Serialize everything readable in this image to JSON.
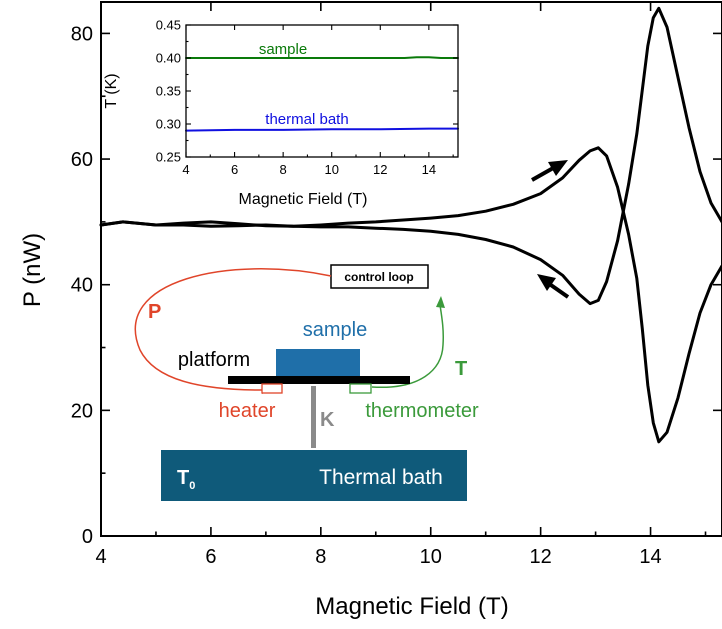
{
  "chart_data": [
    {
      "type": "line",
      "xlabel": "Magnetic Field (T)",
      "ylabel": "P (nW)",
      "xlim": [
        4,
        15.3
      ],
      "ylim": [
        0,
        85
      ],
      "x_ticks": [
        4,
        6,
        8,
        10,
        12,
        14
      ],
      "y_ticks": [
        0,
        20,
        40,
        60,
        80
      ],
      "grid": false,
      "series": [
        {
          "x": [
            4.0,
            4.4,
            5.0,
            5.5,
            6.0,
            6.5,
            7.0,
            7.5,
            8.0,
            8.5,
            9.0,
            9.5,
            10.0,
            10.5,
            11.0,
            11.5,
            12.0,
            12.4,
            12.7,
            12.9,
            13.05,
            13.2,
            13.4,
            13.6,
            13.75,
            13.85,
            13.95,
            14.05,
            14.15,
            14.3,
            14.5,
            14.7,
            14.9,
            15.1,
            15.3
          ],
          "values": [
            49.5,
            50.0,
            49.5,
            49.8,
            50.0,
            49.7,
            49.4,
            49.3,
            49.5,
            49.8,
            50.0,
            50.3,
            50.6,
            51.0,
            51.7,
            52.8,
            54.5,
            57.0,
            59.8,
            61.3,
            61.8,
            60.5,
            55.5,
            48.0,
            41.0,
            33.0,
            24.0,
            18.0,
            15.0,
            16.5,
            22.0,
            29.0,
            35.5,
            40.0,
            43.0
          ]
        },
        {
          "x": [
            4.0,
            4.4,
            5.0,
            5.5,
            6.0,
            6.5,
            7.0,
            7.5,
            8.0,
            8.5,
            9.0,
            9.5,
            10.0,
            10.5,
            11.0,
            11.5,
            12.0,
            12.4,
            12.7,
            12.9,
            13.05,
            13.2,
            13.4,
            13.6,
            13.75,
            13.85,
            13.95,
            14.05,
            14.15,
            14.3,
            14.5,
            14.7,
            14.9,
            15.1,
            15.3
          ],
          "values": [
            49.5,
            50.0,
            49.5,
            49.5,
            49.3,
            49.4,
            49.5,
            49.3,
            49.2,
            49.2,
            49.0,
            48.8,
            48.5,
            48.0,
            47.2,
            46.0,
            44.0,
            41.5,
            38.5,
            37.0,
            37.5,
            40.5,
            47.0,
            56.0,
            64.0,
            71.0,
            78.0,
            82.5,
            84.0,
            81.0,
            73.0,
            65.0,
            58.0,
            53.0,
            50.0
          ]
        }
      ],
      "annotations": {
        "controlloop": "control loop",
        "P": "P",
        "T": "T",
        "sample": "sample",
        "platform": "platform",
        "heater": "heater",
        "thermometer": "thermometer",
        "K": "K",
        "T0": "T",
        "T0_sub": "0",
        "bath": "Thermal bath"
      }
    },
    {
      "type": "line",
      "xlabel": "Magnetic Field (T)",
      "ylabel": "T (K)",
      "xlim": [
        4,
        15.2
      ],
      "ylim": [
        0.25,
        0.45
      ],
      "x_ticks": [
        4,
        6,
        8,
        10,
        12,
        14
      ],
      "y_ticks": [
        0.25,
        0.3,
        0.35,
        0.4,
        0.45
      ],
      "grid": false,
      "series": [
        {
          "name": "sample",
          "x": [
            4,
            6,
            8,
            10,
            12,
            13,
            13.5,
            14,
            14.5,
            15.2
          ],
          "values": [
            0.4,
            0.4,
            0.4,
            0.4,
            0.4,
            0.4,
            0.401,
            0.401,
            0.4,
            0.4
          ]
        },
        {
          "name": "thermal bath",
          "x": [
            4,
            6,
            8,
            10,
            12,
            14,
            15.2
          ],
          "values": [
            0.29,
            0.291,
            0.291,
            0.292,
            0.292,
            0.293,
            0.293
          ]
        }
      ]
    }
  ],
  "colors": {
    "main_line": "#000000",
    "sample_line": "#0a7a0a",
    "bath_line": "#1010e0",
    "heater_red": "#e0452a",
    "thermo_green": "#3b9a3b",
    "sample_box": "#1f6fa9",
    "bath_box": "#0f5a7a",
    "k_gray": "#8a8a8a"
  }
}
